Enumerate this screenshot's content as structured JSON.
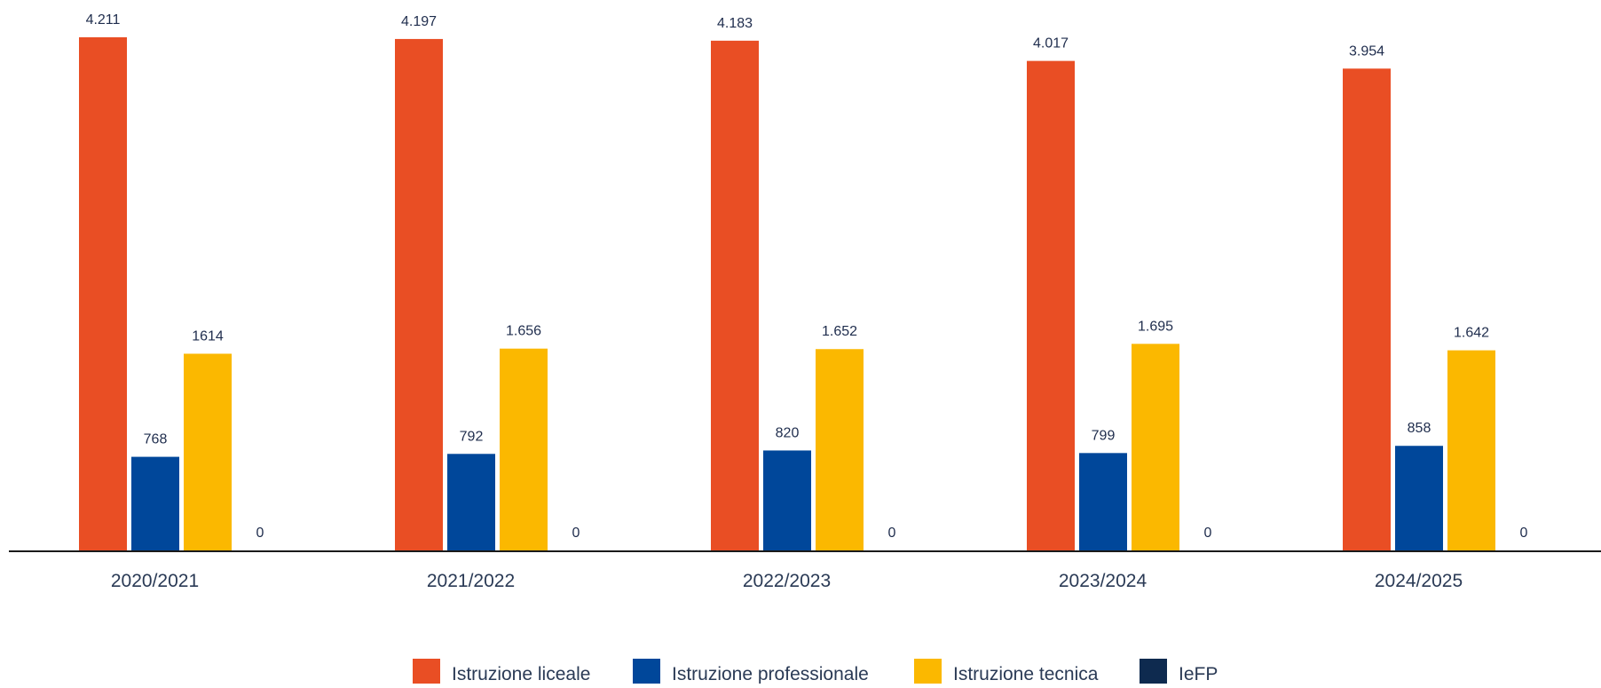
{
  "chart_data": {
    "type": "bar",
    "title": "",
    "xlabel": "",
    "ylabel": "",
    "ylim": [
      0,
      4211
    ],
    "grid": false,
    "legend_position": "bottom",
    "categories": [
      "2020/2021",
      "2021/2022",
      "2022/2023",
      "2023/2024",
      "2024/2025"
    ],
    "series": [
      {
        "name": "Istruzione liceale",
        "color": "#E94E24",
        "values": [
          4211,
          4197,
          4183,
          4017,
          3954
        ],
        "labels": [
          "4.211",
          "4.197",
          "4.183",
          "4.017",
          "3.954"
        ]
      },
      {
        "name": "Istruzione professionale",
        "color": "#00479A",
        "values": [
          768,
          792,
          820,
          799,
          858
        ],
        "labels": [
          "768",
          "792",
          "820",
          "799",
          "858"
        ]
      },
      {
        "name": "Istruzione tecnica",
        "color": "#FBB800",
        "values": [
          1614,
          1656,
          1652,
          1695,
          1642
        ],
        "labels": [
          "1614",
          "1.656",
          "1.652",
          "1.695",
          "1.642"
        ]
      },
      {
        "name": "IeFP",
        "color": "#0E2A4F",
        "values": [
          0,
          0,
          0,
          0,
          0
        ],
        "labels": [
          "0",
          "0",
          "0",
          "0",
          "0"
        ]
      }
    ]
  }
}
